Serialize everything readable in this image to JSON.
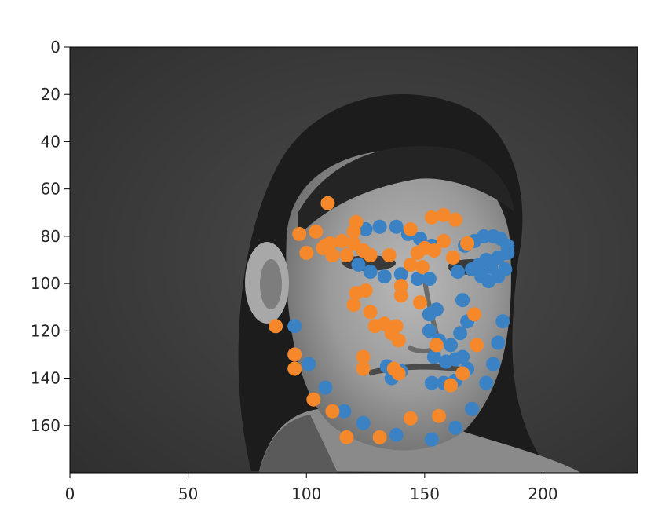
{
  "chart_data": {
    "type": "scatter",
    "title": "",
    "xlabel": "",
    "ylabel": "",
    "xlim": [
      0,
      240
    ],
    "ylim": [
      180,
      0
    ],
    "y_inverted": true,
    "grid": false,
    "background": "grayscale photograph of a face",
    "x_ticks": [
      0,
      50,
      100,
      150,
      200
    ],
    "y_ticks": [
      0,
      20,
      40,
      60,
      80,
      100,
      120,
      140,
      160
    ],
    "series": [
      {
        "color": "#3b82c4",
        "points": [
          [
            95,
            118
          ],
          [
            101,
            134
          ],
          [
            108,
            144
          ],
          [
            116,
            154
          ],
          [
            124,
            159
          ],
          [
            138,
            164
          ],
          [
            153,
            166
          ],
          [
            163,
            161
          ],
          [
            170,
            153
          ],
          [
            176,
            142
          ],
          [
            179,
            134
          ],
          [
            181,
            125
          ],
          [
            183,
            116
          ],
          [
            122,
            92
          ],
          [
            127,
            95
          ],
          [
            133,
            97
          ],
          [
            140,
            96
          ],
          [
            147,
            98
          ],
          [
            152,
            98
          ],
          [
            125,
            77
          ],
          [
            131,
            76
          ],
          [
            138,
            76
          ],
          [
            143,
            79
          ],
          [
            148,
            81
          ],
          [
            153,
            84
          ],
          [
            164,
            95
          ],
          [
            170,
            94
          ],
          [
            174,
            97
          ],
          [
            177,
            99
          ],
          [
            181,
            97
          ],
          [
            184,
            94
          ],
          [
            178,
            93
          ],
          [
            173,
            92
          ],
          [
            167,
            84
          ],
          [
            171,
            82
          ],
          [
            175,
            80
          ],
          [
            179,
            80
          ],
          [
            182,
            81
          ],
          [
            185,
            84
          ],
          [
            185,
            87
          ],
          [
            181,
            89
          ],
          [
            176,
            90
          ],
          [
            155,
            111
          ],
          [
            152,
            113
          ],
          [
            152,
            120
          ],
          [
            156,
            124
          ],
          [
            161,
            126
          ],
          [
            165,
            121
          ],
          [
            168,
            116
          ],
          [
            166,
            107
          ],
          [
            154,
            131
          ],
          [
            159,
            133
          ],
          [
            163,
            132
          ],
          [
            166,
            131
          ],
          [
            168,
            136
          ],
          [
            163,
            141
          ],
          [
            158,
            142
          ],
          [
            153,
            142
          ],
          [
            140,
            137
          ],
          [
            136,
            140
          ],
          [
            134,
            135
          ]
        ]
      },
      {
        "color": "#f4882b",
        "points": [
          [
            87,
            118
          ],
          [
            95,
            130
          ],
          [
            95,
            136
          ],
          [
            103,
            149
          ],
          [
            111,
            154
          ],
          [
            117,
            165
          ],
          [
            131,
            165
          ],
          [
            144,
            157
          ],
          [
            156,
            156
          ],
          [
            161,
            143
          ],
          [
            166,
            138
          ],
          [
            172,
            126
          ],
          [
            171,
            113
          ],
          [
            97,
            79
          ],
          [
            100,
            87
          ],
          [
            104,
            78
          ],
          [
            107,
            85
          ],
          [
            108,
            84
          ],
          [
            110,
            83
          ],
          [
            111,
            88
          ],
          [
            115,
            82
          ],
          [
            117,
            88
          ],
          [
            120,
            83
          ],
          [
            124,
            86
          ],
          [
            127,
            88
          ],
          [
            121,
            74
          ],
          [
            120,
            78
          ],
          [
            109,
            66
          ],
          [
            135,
            88
          ],
          [
            144,
            92
          ],
          [
            149,
            93
          ],
          [
            147,
            87
          ],
          [
            150,
            85
          ],
          [
            153,
            72
          ],
          [
            158,
            71
          ],
          [
            163,
            73
          ],
          [
            158,
            82
          ],
          [
            154,
            86
          ],
          [
            162,
            89
          ],
          [
            168,
            83
          ],
          [
            144,
            77
          ],
          [
            120,
            109
          ],
          [
            121,
            104
          ],
          [
            125,
            103
          ],
          [
            127,
            112
          ],
          [
            129,
            118
          ],
          [
            133,
            117
          ],
          [
            138,
            118
          ],
          [
            139,
            124
          ],
          [
            137,
            136
          ],
          [
            139,
            138
          ],
          [
            136,
            121
          ],
          [
            140,
            101
          ],
          [
            140,
            105
          ],
          [
            148,
            108
          ],
          [
            155,
            126
          ],
          [
            124,
            136
          ],
          [
            124,
            131
          ]
        ]
      }
    ]
  }
}
